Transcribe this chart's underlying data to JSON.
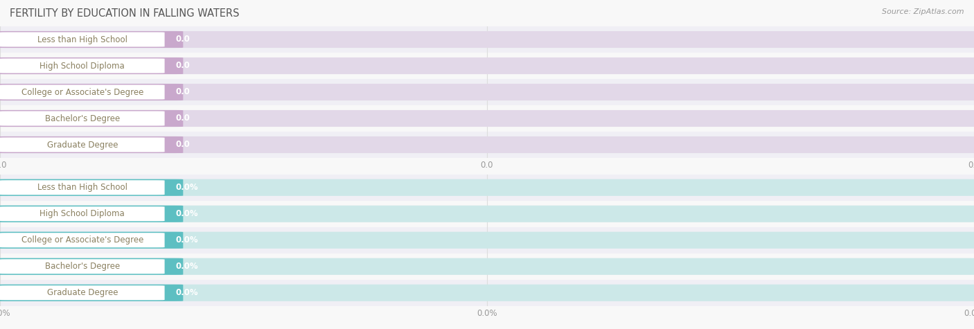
{
  "title": "FERTILITY BY EDUCATION IN FALLING WATERS",
  "source": "Source: ZipAtlas.com",
  "categories": [
    "Less than High School",
    "High School Diploma",
    "College or Associate's Degree",
    "Bachelor's Degree",
    "Graduate Degree"
  ],
  "values_top": [
    0.0,
    0.0,
    0.0,
    0.0,
    0.0
  ],
  "values_bottom": [
    0.0,
    0.0,
    0.0,
    0.0,
    0.0
  ],
  "labels_top": [
    "0.0",
    "0.0",
    "0.0",
    "0.0",
    "0.0"
  ],
  "labels_bottom": [
    "0.0%",
    "0.0%",
    "0.0%",
    "0.0%",
    "0.0%"
  ],
  "bar_color_top": "#c9a8cc",
  "bar_color_bottom": "#5dbfc2",
  "bar_bg_color_top": "#e2d8e8",
  "bar_bg_color_bottom": "#cce8e8",
  "label_text_color": "#ffffff",
  "category_text_color": "#8a8060",
  "axis_tick_color": "#999999",
  "background_color": "#f8f8f8",
  "sep_line_color": "#dddddd",
  "title_color": "#555555",
  "source_color": "#999999",
  "title_fontsize": 10.5,
  "source_fontsize": 8,
  "category_fontsize": 8.5,
  "value_fontsize": 8.5,
  "tick_fontsize": 8.5
}
